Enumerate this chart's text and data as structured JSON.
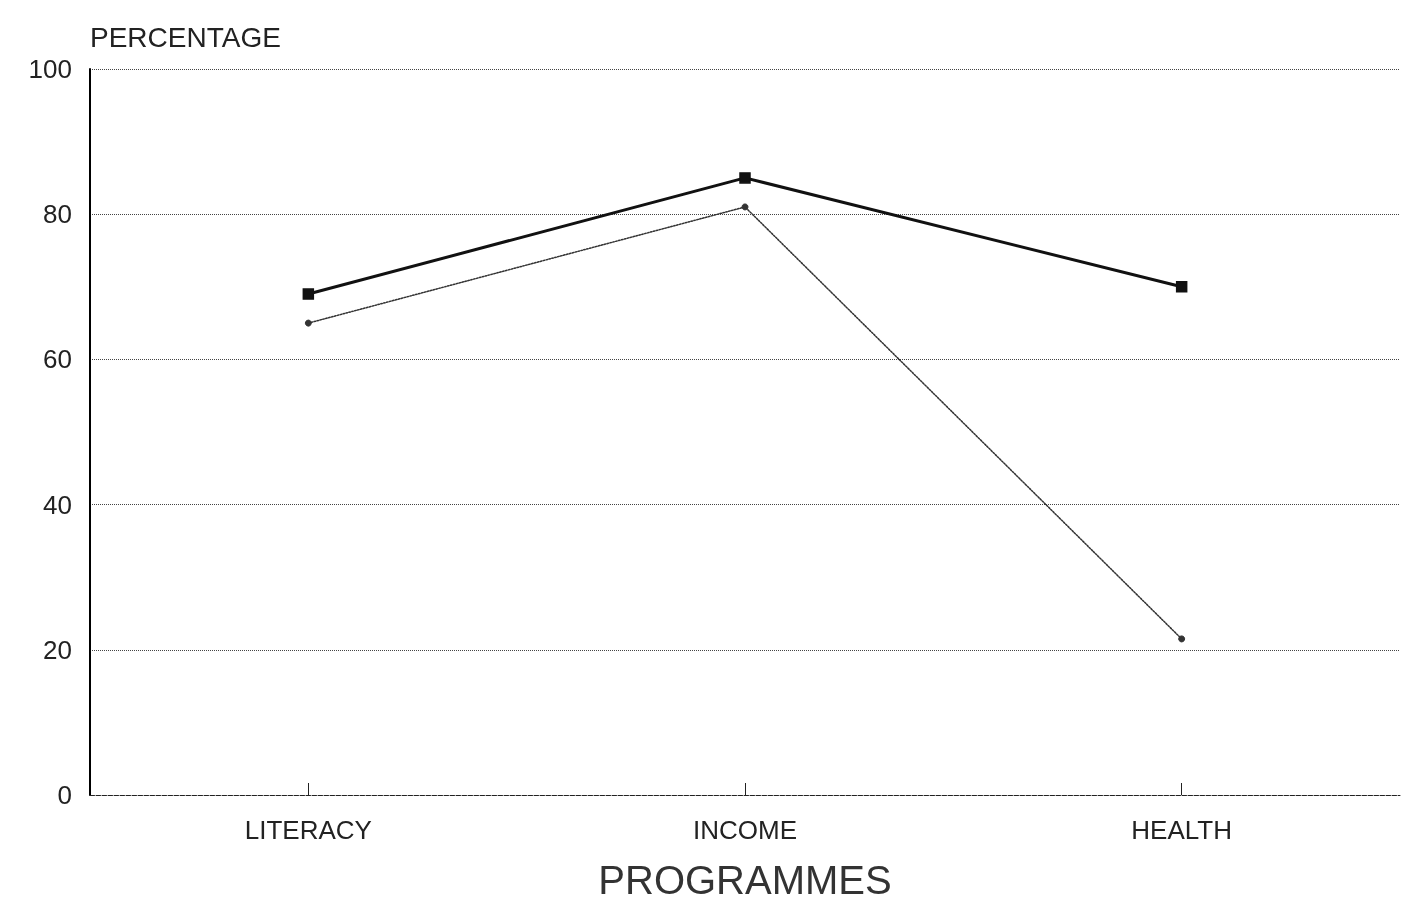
{
  "chart_data": {
    "type": "line",
    "ylabel": "PERCENTAGE",
    "xlabel": "PROGRAMMES",
    "categories": [
      "LITERACY",
      "INCOME",
      "HEALTH"
    ],
    "series": [
      {
        "color": "#111111",
        "values": [
          69,
          85,
          70
        ],
        "marker": "square",
        "line_style": "solid"
      },
      {
        "color": "#333333",
        "values": [
          65,
          81,
          21.5
        ],
        "marker": "circle",
        "line_style": "dotted"
      }
    ],
    "ylim": [
      0,
      100
    ],
    "yticks": [
      0,
      20,
      40,
      60,
      80,
      100
    ],
    "grid": "y"
  }
}
